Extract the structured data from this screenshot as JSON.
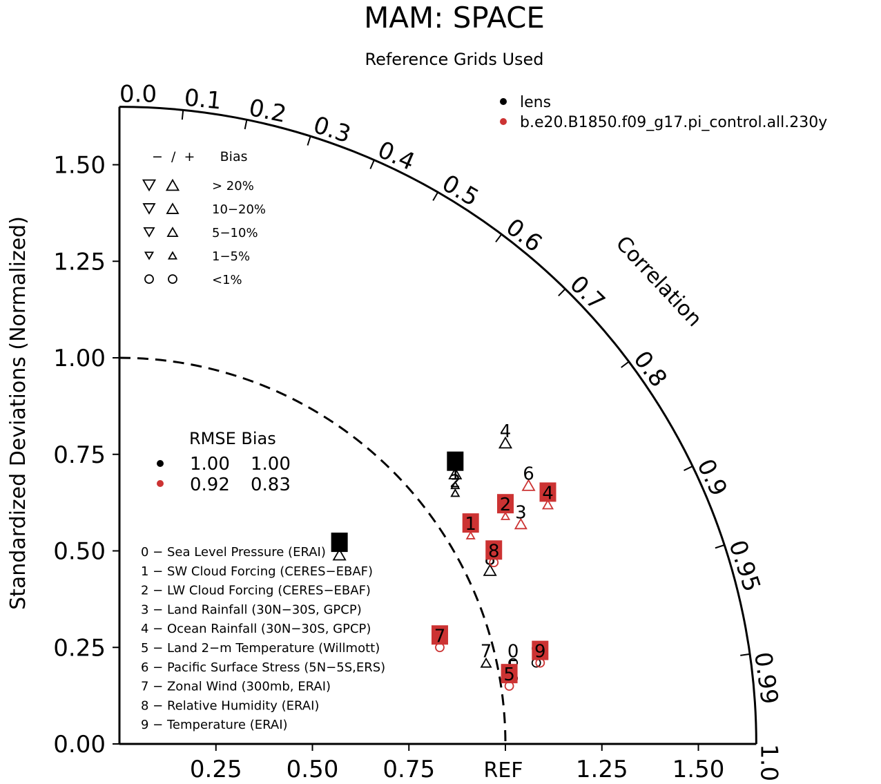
{
  "chart_data": {
    "type": "scatter",
    "subtype": "taylor-diagram",
    "title": "MAM: SPACE",
    "subtitle": "Reference Grids Used",
    "ylabel": "Standardized Deviations (Normalized)",
    "arc_label": "Correlation",
    "ref_label": "REF",
    "axis_range": [
      0,
      1.65
    ],
    "std_ticks": [
      0.0,
      0.25,
      0.5,
      0.75,
      1.0,
      1.25,
      1.5
    ],
    "x_ticks": [
      0.25,
      0.5,
      0.75,
      1.25,
      1.5
    ],
    "y_tick_labels": [
      "0.00",
      "0.25",
      "0.50",
      "0.75",
      "1.00",
      "1.25",
      "1.50"
    ],
    "x_tick_labels": [
      "0.25",
      "0.50",
      "0.75",
      "1.25",
      "1.50"
    ],
    "corr_ticks": [
      0.0,
      0.1,
      0.2,
      0.3,
      0.4,
      0.5,
      0.6,
      0.7,
      0.8,
      0.9,
      0.95,
      0.99,
      1.0
    ],
    "corr_labels": [
      "0.0",
      "0.1",
      "0.2",
      "0.3",
      "0.4",
      "0.5",
      "0.6",
      "0.7",
      "0.8",
      "0.9",
      "0.95",
      "0.99",
      "1.0"
    ],
    "legend": {
      "position": "top-right",
      "series": [
        {
          "name": "lens",
          "color": "#000000"
        },
        {
          "name": "b.e20.B1850.f09_g17.pi_control.all.230y",
          "color": "#cc3333"
        }
      ]
    },
    "bias_legend": {
      "header": "−  /  +      Bias",
      "rows": [
        "> 20%",
        "10−20%",
        "5−10%",
        "1−5%",
        "<1%"
      ]
    },
    "rmse_table": {
      "header": "RMSE Bias",
      "rows": [
        {
          "color": "#000000",
          "rmse": "1.00",
          "bias": "1.00"
        },
        {
          "color": "#cc3333",
          "rmse": "0.92",
          "bias": "0.83"
        }
      ]
    },
    "variables": [
      "0 − Sea Level Pressure (ERAI)",
      "1 − SW Cloud Forcing (CERES−EBAF)",
      "2 − LW Cloud Forcing (CERES−EBAF)",
      "3 − Land Rainfall (30N−30S, GPCP)",
      "4 − Ocean Rainfall (30N−30S, GPCP)",
      "5 − Land 2−m Temperature (Willmott)",
      "6 − Pacific Surface Stress (5N−5S,ERS)",
      "7 − Zonal Wind (300mb, ERAI)",
      "8 − Relative Humidity (ERAI)",
      "9 − Temperature (ERAI)"
    ],
    "series": [
      {
        "name": "lens",
        "color": "#000000",
        "points": [
          {
            "id": "0",
            "x": 1.02,
            "y": 0.21,
            "bias": "<1%",
            "boxed": false
          },
          {
            "id": "1",
            "x": 0.87,
            "y": 0.67,
            "bias": "1-5%",
            "boxed": false
          },
          {
            "id": "2",
            "x": 0.87,
            "y": 0.65,
            "bias": "1-5%",
            "boxed": false
          },
          {
            "id": "3",
            "x": 0.87,
            "y": 0.7,
            "bias": ">20%",
            "boxed": true
          },
          {
            "id": "4",
            "x": 1.0,
            "y": 0.78,
            "bias": ">20%",
            "boxed": false
          },
          {
            "id": "5",
            "x": 1.02,
            "y": 0.17,
            "bias": "<1%",
            "boxed": false
          },
          {
            "id": "6",
            "x": 0.57,
            "y": 0.49,
            "bias": ">20%",
            "boxed": true
          },
          {
            "id": "7",
            "x": 0.95,
            "y": 0.21,
            "bias": "5-10%",
            "boxed": false
          },
          {
            "id": "8",
            "x": 0.96,
            "y": 0.45,
            "bias": ">20%",
            "boxed": false
          },
          {
            "id": "9",
            "x": 1.08,
            "y": 0.21,
            "bias": "<1%",
            "boxed": false
          }
        ]
      },
      {
        "name": "b.e20.B1850.f09_g17.pi_control.all.230y",
        "color": "#cc3333",
        "points": [
          {
            "id": "1",
            "x": 0.91,
            "y": 0.54,
            "bias": "1-5%",
            "boxed": true
          },
          {
            "id": "2",
            "x": 1.0,
            "y": 0.59,
            "bias": "1-5%",
            "boxed": true
          },
          {
            "id": "3",
            "x": 1.04,
            "y": 0.57,
            "bias": "10-20%",
            "boxed": false
          },
          {
            "id": "4",
            "x": 1.11,
            "y": 0.62,
            "bias": "5-10%",
            "boxed": true
          },
          {
            "id": "5",
            "x": 1.01,
            "y": 0.15,
            "bias": "<1%",
            "boxed": true
          },
          {
            "id": "6",
            "x": 1.06,
            "y": 0.67,
            "bias": ">20%",
            "boxed": false
          },
          {
            "id": "7",
            "x": 0.83,
            "y": 0.25,
            "bias": "<1%",
            "boxed": true
          },
          {
            "id": "8",
            "x": 0.97,
            "y": 0.47,
            "bias": "<1%",
            "boxed": true
          },
          {
            "id": "9",
            "x": 1.09,
            "y": 0.21,
            "bias": "<1%",
            "boxed": true
          }
        ]
      }
    ]
  }
}
